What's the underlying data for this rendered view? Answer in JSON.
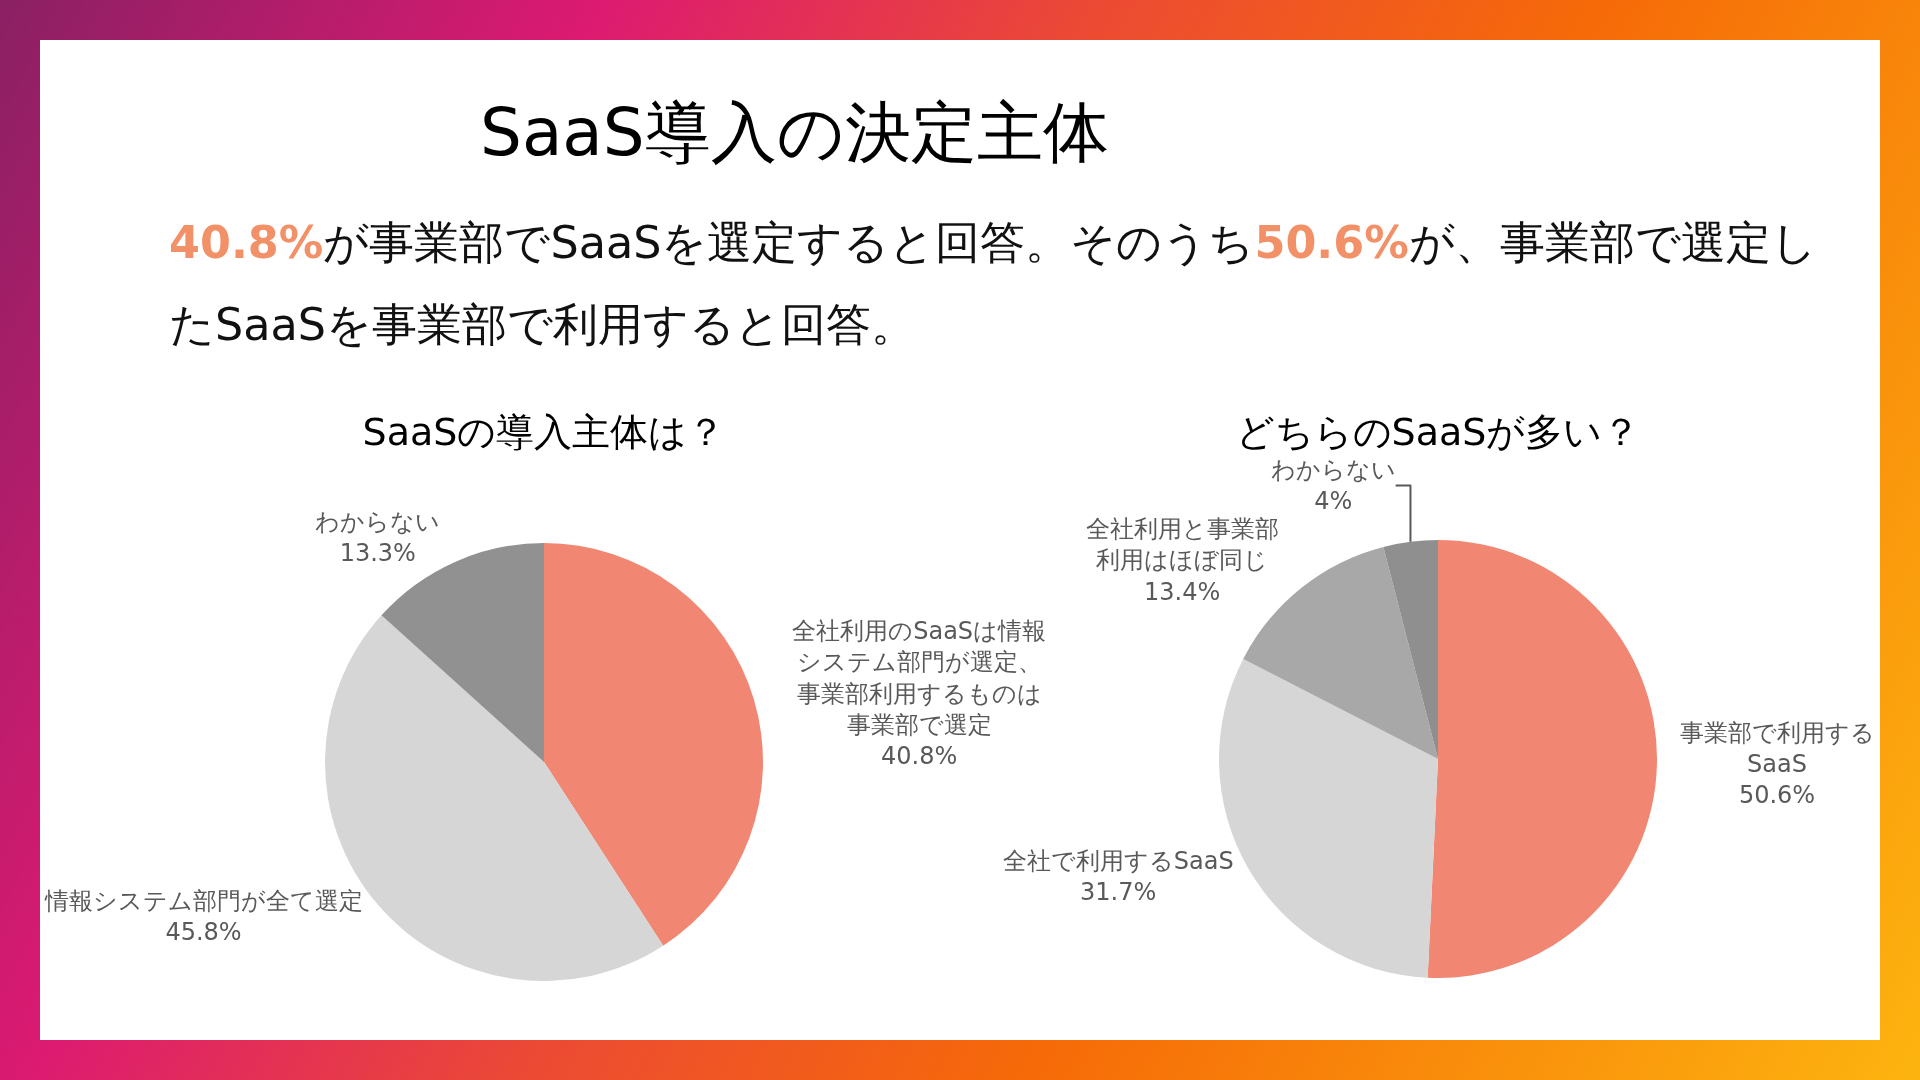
{
  "chart_data": [
    {
      "type": "other",
      "title": "SaaS導入の決定主体",
      "subtitle": "40.8%が事業部でSaaSを選定すると回答。そのうち50.6%が、事業部で選定したSaaSを事業部で利用すると回答。"
    },
    {
      "type": "pie",
      "title": "SaaSの導入主体は？",
      "categories": [
        "全社利用のSaaSは情報システム部門が選定、事業部利用するものは事業部で選定",
        "情報システム部門が全て選定",
        "わからない"
      ],
      "values": [
        40.8,
        45.8,
        13.3
      ],
      "value_labels": [
        "40.8%",
        "45.8%",
        "13.3%"
      ],
      "colors": [
        "#f18672",
        "#d6d6d6",
        "#919191"
      ]
    },
    {
      "type": "pie",
      "title": "どちらのSaaSが多い？",
      "categories": [
        "事業部で利用するSaaS",
        "全社で利用するSaaS",
        "全社利用と事業部利用はほぼ同じ",
        "わからない"
      ],
      "values": [
        50.6,
        31.7,
        13.4,
        4
      ],
      "value_labels": [
        "50.6%",
        "31.7%",
        "13.4%",
        "4%"
      ],
      "colors": [
        "#f18672",
        "#d6d6d6",
        "#a8a8a8",
        "#8f8f8f"
      ]
    }
  ]
}
